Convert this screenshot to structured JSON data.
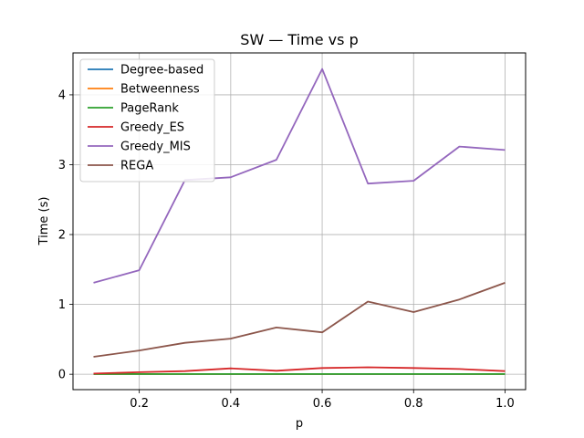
{
  "chart_data": {
    "type": "line",
    "title": "SW — Time vs p",
    "xlabel": "p",
    "ylabel": "Time (s)",
    "xlim": [
      0.055,
      1.045
    ],
    "ylim": [
      -0.22,
      4.6
    ],
    "xticks": [
      0.2,
      0.4,
      0.6,
      0.8,
      1.0
    ],
    "xtick_labels": [
      "0.2",
      "0.4",
      "0.6",
      "0.8",
      "1.0"
    ],
    "yticks": [
      0,
      1,
      2,
      3,
      4
    ],
    "ytick_labels": [
      "0",
      "1",
      "2",
      "3",
      "4"
    ],
    "grid": true,
    "legend_position": "upper-left",
    "x": [
      0.1,
      0.2,
      0.3,
      0.4,
      0.5,
      0.6,
      0.7,
      0.8,
      0.9,
      1.0
    ],
    "series": [
      {
        "name": "Degree-based",
        "color": "#1f77b4",
        "values": [
          0.002,
          0.002,
          0.002,
          0.002,
          0.002,
          0.002,
          0.002,
          0.002,
          0.002,
          0.002
        ]
      },
      {
        "name": "Betweenness",
        "color": "#ff7f0e",
        "values": [
          0.004,
          0.004,
          0.004,
          0.004,
          0.004,
          0.004,
          0.004,
          0.004,
          0.004,
          0.004
        ]
      },
      {
        "name": "PageRank",
        "color": "#2ca02c",
        "values": [
          0.003,
          0.003,
          0.003,
          0.003,
          0.003,
          0.003,
          0.003,
          0.003,
          0.003,
          0.003
        ]
      },
      {
        "name": "Greedy_ES",
        "color": "#d62728",
        "values": [
          0.01,
          0.03,
          0.045,
          0.085,
          0.05,
          0.09,
          0.1,
          0.09,
          0.075,
          0.045
        ]
      },
      {
        "name": "Greedy_MIS",
        "color": "#9467bd",
        "values": [
          1.31,
          1.49,
          2.78,
          2.82,
          3.07,
          4.37,
          2.73,
          2.77,
          3.26,
          3.21
        ]
      },
      {
        "name": "REGA",
        "color": "#8c564b",
        "values": [
          0.25,
          0.34,
          0.45,
          0.51,
          0.67,
          0.6,
          1.04,
          0.89,
          1.07,
          1.31
        ]
      }
    ]
  }
}
